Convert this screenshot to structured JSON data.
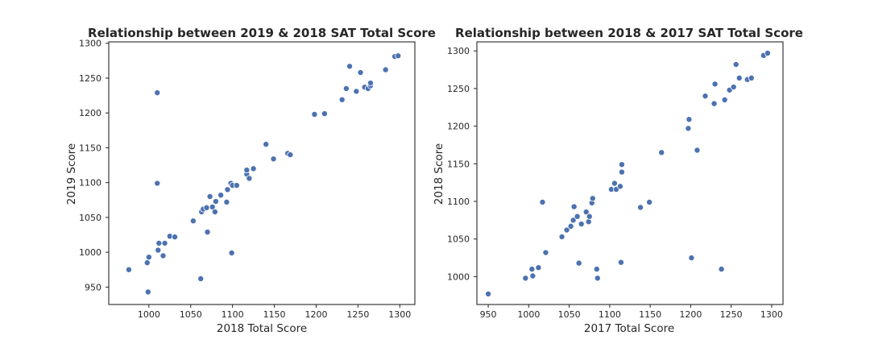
{
  "chart_data": [
    {
      "type": "scatter",
      "title": "Relationship between 2019 & 2018 SAT Total Score",
      "xlabel": "2018 Total Score",
      "ylabel": "2019 Score",
      "xlim": [
        952,
        1318
      ],
      "ylim": [
        925,
        1302
      ],
      "xticks": [
        1000,
        1050,
        1100,
        1150,
        1200,
        1250,
        1300
      ],
      "yticks": [
        950,
        1000,
        1050,
        1100,
        1150,
        1200,
        1250,
        1300
      ],
      "grid": false,
      "color": "#4c72b0",
      "points": [
        [
          976,
          975
        ],
        [
          998,
          985
        ],
        [
          1000,
          993
        ],
        [
          999,
          943
        ],
        [
          1010,
          1229
        ],
        [
          1010,
          1099
        ],
        [
          1011,
          1003
        ],
        [
          1012,
          1013
        ],
        [
          1017,
          995
        ],
        [
          1019,
          1013
        ],
        [
          1025,
          1023
        ],
        [
          1031,
          1022
        ],
        [
          1053,
          1045
        ],
        [
          1062,
          962
        ],
        [
          1063,
          1058
        ],
        [
          1065,
          1062
        ],
        [
          1069,
          1064
        ],
        [
          1070,
          1029
        ],
        [
          1073,
          1080
        ],
        [
          1076,
          1065
        ],
        [
          1079,
          1058
        ],
        [
          1080,
          1073
        ],
        [
          1086,
          1082
        ],
        [
          1093,
          1072
        ],
        [
          1094,
          1090
        ],
        [
          1098,
          1099
        ],
        [
          1099,
          999
        ],
        [
          1100,
          1096
        ],
        [
          1105,
          1096
        ],
        [
          1117,
          1112
        ],
        [
          1117,
          1118
        ],
        [
          1120,
          1106
        ],
        [
          1125,
          1120
        ],
        [
          1140,
          1155
        ],
        [
          1149,
          1134
        ],
        [
          1166,
          1142
        ],
        [
          1169,
          1140
        ],
        [
          1198,
          1198
        ],
        [
          1210,
          1199
        ],
        [
          1231,
          1219
        ],
        [
          1236,
          1235
        ],
        [
          1240,
          1267
        ],
        [
          1248,
          1231
        ],
        [
          1253,
          1258
        ],
        [
          1258,
          1237
        ],
        [
          1262,
          1235
        ],
        [
          1265,
          1239
        ],
        [
          1265,
          1243
        ],
        [
          1283,
          1262
        ],
        [
          1294,
          1281
        ],
        [
          1298,
          1282
        ]
      ]
    },
    {
      "type": "scatter",
      "title": "Relationship between 2018 & 2017 SAT Total Score",
      "xlabel": "2017 Total Score",
      "ylabel": "2018 Score",
      "xlim": [
        936,
        1314
      ],
      "ylim": [
        963,
        1312
      ],
      "xticks": [
        950,
        1000,
        1050,
        1100,
        1150,
        1200,
        1250,
        1300
      ],
      "yticks": [
        1000,
        1050,
        1100,
        1150,
        1200,
        1250,
        1300
      ],
      "grid": false,
      "color": "#4c72b0",
      "points": [
        [
          950,
          977
        ],
        [
          996,
          998
        ],
        [
          1004,
          1010
        ],
        [
          1005,
          1001
        ],
        [
          1012,
          1012
        ],
        [
          1017,
          1099
        ],
        [
          1021,
          1032
        ],
        [
          1041,
          1053
        ],
        [
          1047,
          1062
        ],
        [
          1052,
          1067
        ],
        [
          1055,
          1075
        ],
        [
          1056,
          1093
        ],
        [
          1060,
          1080
        ],
        [
          1062,
          1018
        ],
        [
          1065,
          1070
        ],
        [
          1071,
          1086
        ],
        [
          1074,
          1073
        ],
        [
          1075,
          1080
        ],
        [
          1078,
          1098
        ],
        [
          1079,
          1104
        ],
        [
          1084,
          1010
        ],
        [
          1085,
          998
        ],
        [
          1102,
          1116
        ],
        [
          1106,
          1124
        ],
        [
          1108,
          1116
        ],
        [
          1113,
          1120
        ],
        [
          1114,
          1019
        ],
        [
          1115,
          1139
        ],
        [
          1115,
          1149
        ],
        [
          1138,
          1092
        ],
        [
          1149,
          1099
        ],
        [
          1164,
          1165
        ],
        [
          1197,
          1197
        ],
        [
          1198,
          1209
        ],
        [
          1201,
          1025
        ],
        [
          1208,
          1168
        ],
        [
          1218,
          1240
        ],
        [
          1229,
          1230
        ],
        [
          1230,
          1256
        ],
        [
          1238,
          1010
        ],
        [
          1242,
          1235
        ],
        [
          1248,
          1248
        ],
        [
          1253,
          1252
        ],
        [
          1256,
          1282
        ],
        [
          1260,
          1264
        ],
        [
          1270,
          1262
        ],
        [
          1275,
          1264
        ],
        [
          1290,
          1294
        ],
        [
          1295,
          1297
        ]
      ]
    }
  ]
}
